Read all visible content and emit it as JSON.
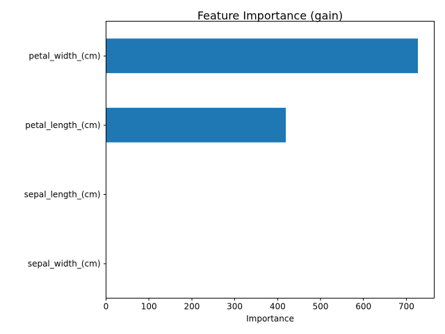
{
  "chart_data": {
    "type": "bar",
    "orientation": "horizontal",
    "title": "Feature Importance (gain)",
    "xlabel": "Importance",
    "ylabel": "",
    "categories": [
      "petal_width_(cm)",
      "petal_length_(cm)",
      "sepal_length_(cm)",
      "sepal_width_(cm)"
    ],
    "values": [
      727,
      419,
      0,
      0
    ],
    "xlim": [
      0,
      765
    ],
    "xticks": [
      0,
      100,
      200,
      300,
      400,
      500,
      600,
      700
    ],
    "xtick_labels": [
      "0",
      "100",
      "200",
      "300",
      "400",
      "500",
      "600",
      "700"
    ],
    "grid": false,
    "bar_color": "#1f77b4"
  }
}
